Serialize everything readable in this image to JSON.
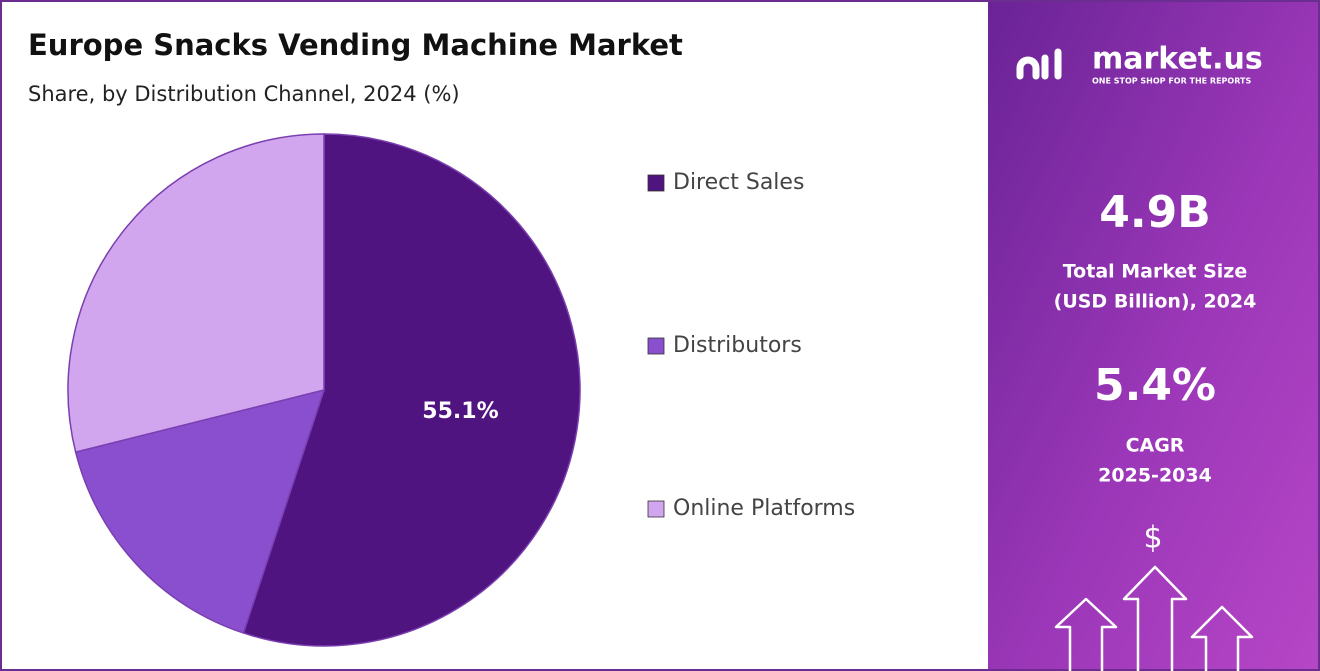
{
  "chart_data": {
    "type": "pie",
    "title": "Europe Snacks Vending Machine Market",
    "subtitle": "Share, by Distribution Channel, 2024 (%)",
    "categories": [
      "Direct Sales",
      "Distributors",
      "Online Platforms"
    ],
    "values": [
      55.1,
      16.0,
      28.9
    ],
    "value_labels": [
      "55.1%",
      null,
      null
    ],
    "colors": [
      "#4f1480",
      "#8a4fcf",
      "#d1a6ee"
    ],
    "legend": "right"
  },
  "panel": {
    "brand": "market.us",
    "tagline": "ONE STOP SHOP FOR THE REPORTS",
    "market_size": "4.9B",
    "market_size_caption": [
      "Total Market Size",
      "(USD Billion), 2024"
    ],
    "cagr": "5.4%",
    "cagr_caption": [
      "CAGR",
      "2025-2034"
    ],
    "currency": "$"
  }
}
